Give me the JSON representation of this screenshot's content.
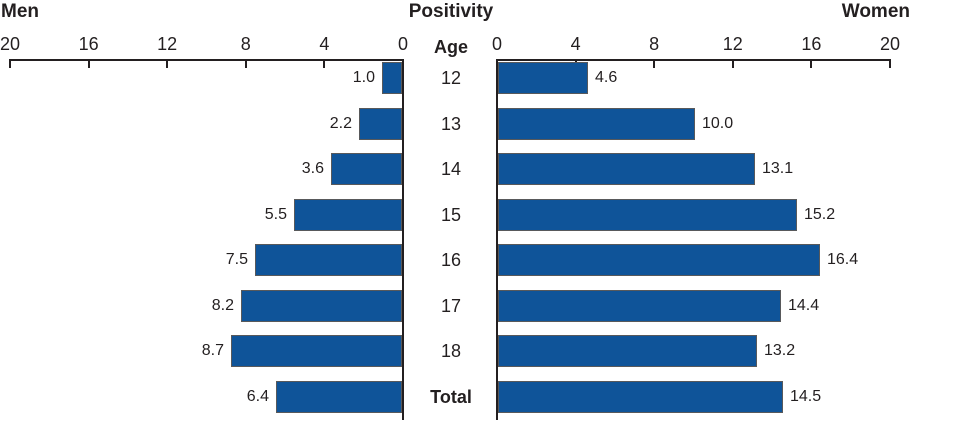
{
  "titles": {
    "left": "Men",
    "center": "Positivity",
    "right": "Women",
    "age_header": "Age"
  },
  "colors": {
    "bar_fill": "#0F5499",
    "bar_border": "#58595B",
    "axis": "#231F20",
    "text": "#231F20"
  },
  "chart_data": {
    "type": "bar",
    "subtype": "horizontal-pyramid",
    "title": "Positivity",
    "center_axis_label": "Age",
    "categories": [
      "12",
      "13",
      "14",
      "15",
      "16",
      "17",
      "18",
      "Total"
    ],
    "series": [
      {
        "name": "Men",
        "side": "left",
        "values": [
          1.0,
          2.2,
          3.6,
          5.5,
          7.5,
          8.2,
          8.7,
          6.4
        ]
      },
      {
        "name": "Women",
        "side": "right",
        "values": [
          4.6,
          10.0,
          13.1,
          15.2,
          16.4,
          14.4,
          13.2,
          14.5
        ]
      }
    ],
    "axis_ticks": [
      0,
      4,
      8,
      12,
      16,
      20
    ],
    "axis_range": [
      0,
      20
    ],
    "value_label_decimals": 1,
    "grid": false,
    "legend_position": "titles-above"
  }
}
